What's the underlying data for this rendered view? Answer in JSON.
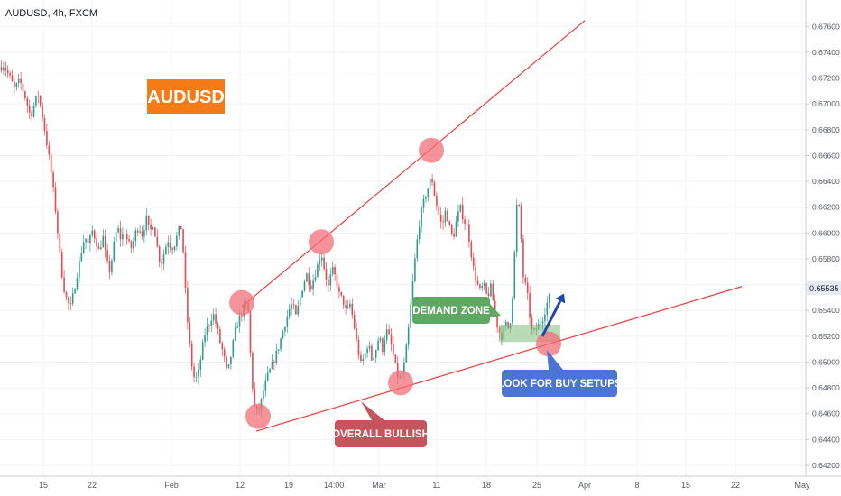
{
  "header": {
    "title": "AUDUSD, 4h, FXCM"
  },
  "badge": {
    "text": "AUDUSD",
    "color": "#f47c18"
  },
  "price_tag": {
    "value": "0.65535",
    "color": "#e6eaf2"
  },
  "colors": {
    "up": "#2e9b8c",
    "down": "#e44b4f",
    "trendline": "#ef3b3b",
    "circle": "#f07078",
    "demand": "#7dbf7a",
    "demand_label": "#5fa861",
    "bullish_label": "#c7545c",
    "buy_label": "#4b74d3",
    "arrow": "#1f46b0"
  },
  "annotations": {
    "demand_zone": "DEMAND ZONE",
    "overall_bullish": "OVERALL BULLISH",
    "look_for_buy": "LOOK FOR BUY SETUPS"
  },
  "chart_data": {
    "type": "candlestick",
    "ylim": [
      0.6415,
      0.6775
    ],
    "y_ticks": [
      "0.67600",
      "0.67400",
      "0.67200",
      "0.67000",
      "0.66800",
      "0.66600",
      "0.66400",
      "0.66200",
      "0.66000",
      "0.65800",
      "0.65600",
      "0.65400",
      "0.65200",
      "0.65000",
      "0.64800",
      "0.64600",
      "0.64400",
      "0.64200"
    ],
    "x_ticks": [
      "15",
      "22",
      "Feb",
      "12",
      "19",
      "14:00",
      "Mar",
      "11",
      "18",
      "25",
      "Apr",
      "8",
      "15",
      "22",
      "May"
    ],
    "x_tick_pos": [
      48,
      102,
      190,
      266,
      320,
      370,
      420,
      484,
      539,
      595,
      648,
      706,
      760,
      815,
      889
    ],
    "path": [
      [
        0,
        0.6728
      ],
      [
        4,
        0.673
      ],
      [
        10,
        0.6722
      ],
      [
        16,
        0.6712
      ],
      [
        22,
        0.6718
      ],
      [
        28,
        0.6705
      ],
      [
        34,
        0.669
      ],
      [
        38,
        0.67
      ],
      [
        42,
        0.6708
      ],
      [
        46,
        0.6695
      ],
      [
        50,
        0.6678
      ],
      [
        54,
        0.666
      ],
      [
        58,
        0.664
      ],
      [
        62,
        0.6615
      ],
      [
        66,
        0.6585
      ],
      [
        70,
        0.656
      ],
      [
        74,
        0.6548
      ],
      [
        78,
        0.6542
      ],
      [
        82,
        0.6555
      ],
      [
        86,
        0.657
      ],
      [
        90,
        0.6585
      ],
      [
        94,
        0.6598
      ],
      [
        98,
        0.659
      ],
      [
        102,
        0.6602
      ],
      [
        106,
        0.6595
      ],
      [
        110,
        0.6585
      ],
      [
        114,
        0.6598
      ],
      [
        118,
        0.6578
      ],
      [
        122,
        0.657
      ],
      [
        126,
        0.659
      ],
      [
        130,
        0.6605
      ],
      [
        134,
        0.6595
      ],
      [
        138,
        0.6602
      ],
      [
        142,
        0.6592
      ],
      [
        146,
        0.6588
      ],
      [
        150,
        0.66
      ],
      [
        154,
        0.6605
      ],
      [
        158,
        0.6598
      ],
      [
        162,
        0.6612
      ],
      [
        166,
        0.66
      ],
      [
        170,
        0.6608
      ],
      [
        174,
        0.659
      ],
      [
        178,
        0.6575
      ],
      [
        182,
        0.6585
      ],
      [
        186,
        0.6595
      ],
      [
        190,
        0.6588
      ],
      [
        194,
        0.6592
      ],
      [
        198,
        0.6602
      ],
      [
        202,
        0.6605
      ],
      [
        204,
        0.657
      ],
      [
        208,
        0.653
      ],
      [
        212,
        0.65
      ],
      [
        216,
        0.6485
      ],
      [
        220,
        0.6492
      ],
      [
        224,
        0.651
      ],
      [
        228,
        0.6525
      ],
      [
        232,
        0.653
      ],
      [
        236,
        0.6538
      ],
      [
        240,
        0.6528
      ],
      [
        244,
        0.6515
      ],
      [
        248,
        0.6505
      ],
      [
        252,
        0.649
      ],
      [
        256,
        0.6505
      ],
      [
        260,
        0.6522
      ],
      [
        264,
        0.6532
      ],
      [
        268,
        0.6538
      ],
      [
        272,
        0.6545
      ],
      [
        275,
        0.654
      ],
      [
        278,
        0.65
      ],
      [
        281,
        0.647
      ],
      [
        284,
        0.646
      ],
      [
        288,
        0.6465
      ],
      [
        292,
        0.6478
      ],
      [
        296,
        0.6488
      ],
      [
        300,
        0.6495
      ],
      [
        304,
        0.6502
      ],
      [
        308,
        0.651
      ],
      [
        312,
        0.652
      ],
      [
        316,
        0.653
      ],
      [
        320,
        0.654
      ],
      [
        324,
        0.6545
      ],
      [
        328,
        0.6535
      ],
      [
        332,
        0.6548
      ],
      [
        336,
        0.656
      ],
      [
        340,
        0.6568
      ],
      [
        344,
        0.6558
      ],
      [
        348,
        0.6565
      ],
      [
        352,
        0.6575
      ],
      [
        356,
        0.6585
      ],
      [
        360,
        0.657
      ],
      [
        364,
        0.6558
      ],
      [
        368,
        0.6572
      ],
      [
        372,
        0.6565
      ],
      [
        376,
        0.6552
      ],
      [
        380,
        0.6548
      ],
      [
        384,
        0.6538
      ],
      [
        388,
        0.6545
      ],
      [
        392,
        0.653
      ],
      [
        396,
        0.6512
      ],
      [
        400,
        0.6498
      ],
      [
        404,
        0.6505
      ],
      [
        408,
        0.6515
      ],
      [
        412,
        0.6502
      ],
      [
        416,
        0.6508
      ],
      [
        420,
        0.652
      ],
      [
        424,
        0.651
      ],
      [
        428,
        0.6525
      ],
      [
        432,
        0.6518
      ],
      [
        436,
        0.6505
      ],
      [
        440,
        0.649
      ],
      [
        444,
        0.6486
      ],
      [
        448,
        0.6498
      ],
      [
        452,
        0.652
      ],
      [
        456,
        0.655
      ],
      [
        460,
        0.658
      ],
      [
        464,
        0.6605
      ],
      [
        468,
        0.662
      ],
      [
        472,
        0.663
      ],
      [
        476,
        0.6638
      ],
      [
        478,
        0.6645
      ],
      [
        482,
        0.6628
      ],
      [
        486,
        0.6615
      ],
      [
        490,
        0.6605
      ],
      [
        494,
        0.6618
      ],
      [
        498,
        0.6605
      ],
      [
        502,
        0.6595
      ],
      [
        506,
        0.661
      ],
      [
        510,
        0.662
      ],
      [
        514,
        0.661
      ],
      [
        518,
        0.6605
      ],
      [
        520,
        0.6595
      ],
      [
        524,
        0.6575
      ],
      [
        528,
        0.6562
      ],
      [
        532,
        0.6555
      ],
      [
        536,
        0.656
      ],
      [
        540,
        0.655
      ],
      [
        544,
        0.6558
      ],
      [
        548,
        0.654
      ],
      [
        552,
        0.6525
      ],
      [
        556,
        0.652
      ],
      [
        560,
        0.653
      ],
      [
        564,
        0.6525
      ],
      [
        567,
        0.654
      ],
      [
        570,
        0.658
      ],
      [
        573,
        0.6625
      ],
      [
        575,
        0.662
      ],
      [
        578,
        0.659
      ],
      [
        580,
        0.6565
      ],
      [
        584,
        0.6555
      ],
      [
        588,
        0.653
      ],
      [
        590,
        0.6522
      ],
      [
        594,
        0.6525
      ],
      [
        598,
        0.653
      ],
      [
        602,
        0.6535
      ],
      [
        606,
        0.6545
      ],
      [
        610,
        0.6553
      ]
    ],
    "trendlines": [
      {
        "points": [
          [
            268,
            0.6543
          ],
          [
            648,
            0.67645
          ]
        ]
      },
      {
        "points": [
          [
            284,
            0.64465
          ],
          [
            822,
            0.65585
          ]
        ]
      }
    ],
    "circles": [
      [
        268,
        0.6546
      ],
      [
        356,
        0.6593
      ],
      [
        478,
        0.6664
      ],
      [
        286,
        0.6458
      ],
      [
        444,
        0.6484
      ],
      [
        608,
        0.6514
      ]
    ],
    "demand_zone": {
      "x0": 553,
      "x1": 621,
      "y0": 0.65155,
      "y1": 0.6529
    },
    "arrow": {
      "from": [
        601,
        0.652
      ],
      "to": [
        625,
        0.6553
      ]
    }
  }
}
